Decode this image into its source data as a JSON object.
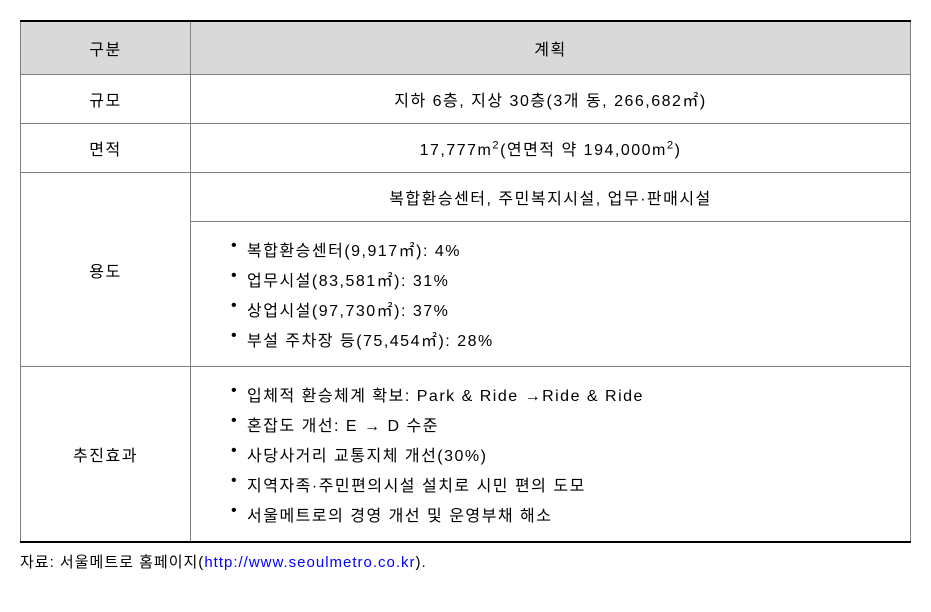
{
  "table": {
    "header": {
      "col1": "구분",
      "col2": "계획"
    },
    "rows": {
      "row1": {
        "label": "규모",
        "content": "지하 6층, 지상 30층(3개 동, 266,682㎡)"
      },
      "row2": {
        "label": "면적",
        "content_pre": "17,777m",
        "content_sup1": "2",
        "content_mid": "(연면적 약 194,000m",
        "content_sup2": "2",
        "content_post": ")"
      },
      "row3": {
        "label": "용도",
        "heading": "복합환승센터, 주민복지시설, 업무·판매시설",
        "items": [
          "복합환승센터(9,917㎡): 4%",
          "업무시설(83,581㎡): 31%",
          "상업시설(97,730㎡): 37%",
          "부설 주차장 등(75,454㎡): 28%"
        ]
      },
      "row4": {
        "label": "추진효과",
        "items": [
          "입체적 환승체계 확보: Park & Ride →Ride & Ride",
          "혼잡도 개선: E → D 수준",
          "사당사거리 교통지체 개선(30%)",
          "지역자족·주민편의시설 설치로 시민 편의 도모",
          "서울메트로의 경영 개선 및 운영부채 해소"
        ]
      }
    }
  },
  "source": {
    "label": "자료: 서울메트로 홈페이지(",
    "url": "http://www.seoulmetro.co.kr",
    "suffix": ")."
  },
  "style": {
    "header_bg": "#d9d9d9",
    "border_color": "#808080",
    "outer_border_color": "#000000",
    "link_color": "#0000ff",
    "font_size": 16,
    "letter_spacing": 1.5
  }
}
